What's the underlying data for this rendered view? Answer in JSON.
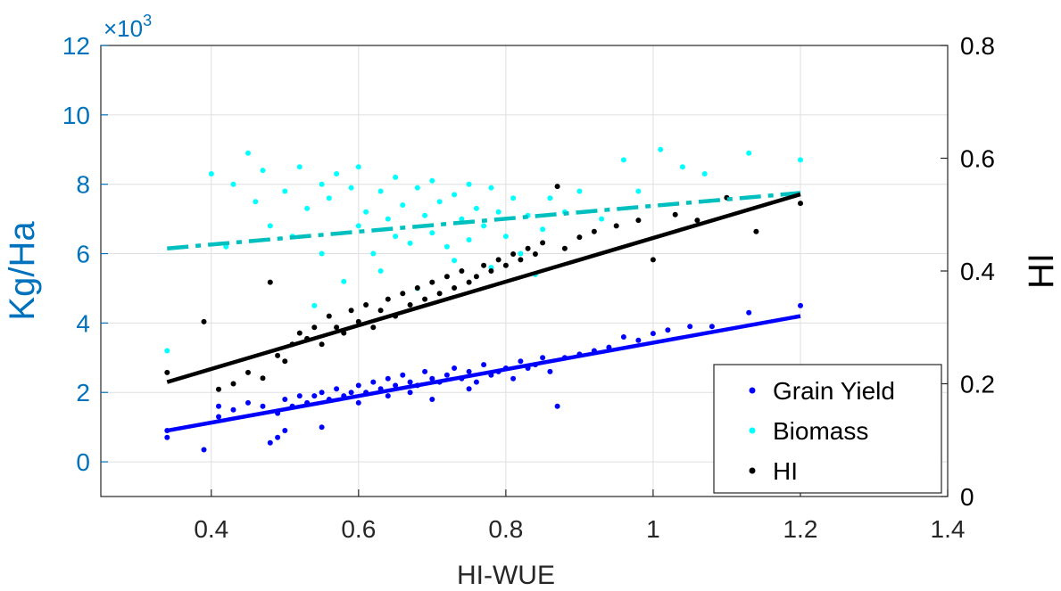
{
  "chart_data": {
    "type": "scatter",
    "title": "",
    "xlabel": "HI-WUE",
    "ylabel_left": "Kg/Ha",
    "ylabel_right": "HI",
    "y_left_multiplier_label": "×10",
    "y_left_multiplier_exponent": "3",
    "xlim": [
      0.25,
      1.4
    ],
    "ylim_left": [
      -1,
      12
    ],
    "ylim_right": [
      0,
      0.8
    ],
    "x_ticks": [
      "0.4",
      "0.6",
      "0.8",
      "1",
      "1.2",
      "1.4"
    ],
    "x_tick_values": [
      0.4,
      0.6,
      0.8,
      1.0,
      1.2,
      1.4
    ],
    "y_left_ticks": [
      "0",
      "2",
      "4",
      "6",
      "8",
      "10",
      "12"
    ],
    "y_left_tick_values": [
      0,
      2,
      4,
      6,
      8,
      10,
      12
    ],
    "y_right_ticks": [
      "0",
      "0.2",
      "0.4",
      "0.6",
      "0.8"
    ],
    "y_right_tick_values": [
      0,
      0.2,
      0.4,
      0.6,
      0.8
    ],
    "grid": true,
    "legend_position": "bottom-right",
    "series": [
      {
        "name": "Grain Yield",
        "color": "#0000ff",
        "axis": "left",
        "trend": {
          "x": [
            0.34,
            1.2
          ],
          "y": [
            0.9,
            4.2
          ],
          "style": "solid"
        },
        "points": [
          [
            0.34,
            0.7
          ],
          [
            0.34,
            0.9
          ],
          [
            0.39,
            0.35
          ],
          [
            0.41,
            1.3
          ],
          [
            0.41,
            1.6
          ],
          [
            0.43,
            1.5
          ],
          [
            0.45,
            1.7
          ],
          [
            0.47,
            1.6
          ],
          [
            0.48,
            0.55
          ],
          [
            0.49,
            0.7
          ],
          [
            0.49,
            1.4
          ],
          [
            0.5,
            0.9
          ],
          [
            0.5,
            1.8
          ],
          [
            0.51,
            1.6
          ],
          [
            0.52,
            1.9
          ],
          [
            0.53,
            1.7
          ],
          [
            0.54,
            1.9
          ],
          [
            0.55,
            2.0
          ],
          [
            0.55,
            1.0
          ],
          [
            0.56,
            1.8
          ],
          [
            0.57,
            2.1
          ],
          [
            0.58,
            1.9
          ],
          [
            0.59,
            2.0
          ],
          [
            0.6,
            2.2
          ],
          [
            0.6,
            1.7
          ],
          [
            0.61,
            2.0
          ],
          [
            0.62,
            2.3
          ],
          [
            0.63,
            2.1
          ],
          [
            0.64,
            1.9
          ],
          [
            0.64,
            2.4
          ],
          [
            0.65,
            2.2
          ],
          [
            0.66,
            2.5
          ],
          [
            0.67,
            2.0
          ],
          [
            0.67,
            2.3
          ],
          [
            0.68,
            2.2
          ],
          [
            0.69,
            2.6
          ],
          [
            0.7,
            2.4
          ],
          [
            0.7,
            1.8
          ],
          [
            0.71,
            2.3
          ],
          [
            0.72,
            2.5
          ],
          [
            0.73,
            2.7
          ],
          [
            0.74,
            2.4
          ],
          [
            0.75,
            2.6
          ],
          [
            0.75,
            2.1
          ],
          [
            0.76,
            2.3
          ],
          [
            0.77,
            2.8
          ],
          [
            0.78,
            2.5
          ],
          [
            0.79,
            2.6
          ],
          [
            0.8,
            2.7
          ],
          [
            0.81,
            2.4
          ],
          [
            0.82,
            2.9
          ],
          [
            0.83,
            2.7
          ],
          [
            0.84,
            2.8
          ],
          [
            0.85,
            3.0
          ],
          [
            0.86,
            2.6
          ],
          [
            0.87,
            1.6
          ],
          [
            0.88,
            3.0
          ],
          [
            0.9,
            3.1
          ],
          [
            0.92,
            3.2
          ],
          [
            0.94,
            3.3
          ],
          [
            0.96,
            3.6
          ],
          [
            0.98,
            3.5
          ],
          [
            1.0,
            3.7
          ],
          [
            1.02,
            3.8
          ],
          [
            1.05,
            3.9
          ],
          [
            1.08,
            3.9
          ],
          [
            1.13,
            4.3
          ],
          [
            1.2,
            4.5
          ]
        ]
      },
      {
        "name": "Biomass",
        "color": "#00ffff",
        "axis": "left",
        "trend": {
          "x": [
            0.34,
            1.2
          ],
          "y": [
            6.15,
            7.75
          ],
          "style": "dash-dot"
        },
        "points": [
          [
            0.34,
            3.2
          ],
          [
            0.4,
            8.3
          ],
          [
            0.42,
            6.2
          ],
          [
            0.43,
            8.0
          ],
          [
            0.45,
            8.9
          ],
          [
            0.46,
            7.5
          ],
          [
            0.47,
            8.4
          ],
          [
            0.48,
            6.8
          ],
          [
            0.5,
            7.8
          ],
          [
            0.51,
            6.5
          ],
          [
            0.52,
            8.5
          ],
          [
            0.53,
            7.3
          ],
          [
            0.54,
            4.5
          ],
          [
            0.55,
            8.0
          ],
          [
            0.55,
            6.0
          ],
          [
            0.56,
            7.6
          ],
          [
            0.57,
            8.3
          ],
          [
            0.58,
            5.2
          ],
          [
            0.59,
            7.9
          ],
          [
            0.6,
            6.8
          ],
          [
            0.6,
            8.5
          ],
          [
            0.61,
            7.2
          ],
          [
            0.62,
            6.0
          ],
          [
            0.63,
            7.8
          ],
          [
            0.63,
            5.5
          ],
          [
            0.64,
            7.0
          ],
          [
            0.65,
            8.2
          ],
          [
            0.65,
            6.5
          ],
          [
            0.66,
            7.4
          ],
          [
            0.67,
            6.3
          ],
          [
            0.68,
            7.9
          ],
          [
            0.68,
            5.0
          ],
          [
            0.69,
            7.1
          ],
          [
            0.7,
            6.6
          ],
          [
            0.7,
            8.1
          ],
          [
            0.71,
            7.5
          ],
          [
            0.72,
            6.2
          ],
          [
            0.73,
            7.7
          ],
          [
            0.73,
            5.8
          ],
          [
            0.74,
            7.0
          ],
          [
            0.75,
            6.4
          ],
          [
            0.75,
            8.0
          ],
          [
            0.76,
            7.3
          ],
          [
            0.77,
            6.8
          ],
          [
            0.78,
            5.6
          ],
          [
            0.78,
            7.9
          ],
          [
            0.79,
            7.2
          ],
          [
            0.8,
            6.5
          ],
          [
            0.81,
            7.6
          ],
          [
            0.82,
            6.0
          ],
          [
            0.83,
            7.1
          ],
          [
            0.84,
            5.4
          ],
          [
            0.85,
            6.7
          ],
          [
            0.86,
            7.6
          ],
          [
            0.88,
            7.2
          ],
          [
            0.9,
            7.8
          ],
          [
            0.93,
            7.0
          ],
          [
            0.96,
            8.7
          ],
          [
            0.98,
            7.8
          ],
          [
            1.01,
            9.0
          ],
          [
            1.04,
            8.5
          ],
          [
            1.07,
            8.3
          ],
          [
            1.13,
            8.9
          ],
          [
            1.2,
            8.7
          ]
        ]
      },
      {
        "name": "HI",
        "color": "#000000",
        "axis": "right",
        "trend": {
          "x": [
            0.34,
            1.2
          ],
          "y": [
            0.203,
            0.536
          ],
          "style": "solid"
        },
        "points": [
          [
            0.34,
            0.22
          ],
          [
            0.39,
            0.31
          ],
          [
            0.41,
            0.19
          ],
          [
            0.43,
            0.2
          ],
          [
            0.45,
            0.22
          ],
          [
            0.47,
            0.21
          ],
          [
            0.48,
            0.38
          ],
          [
            0.49,
            0.25
          ],
          [
            0.5,
            0.24
          ],
          [
            0.51,
            0.27
          ],
          [
            0.52,
            0.29
          ],
          [
            0.53,
            0.28
          ],
          [
            0.54,
            0.3
          ],
          [
            0.55,
            0.27
          ],
          [
            0.56,
            0.32
          ],
          [
            0.57,
            0.3
          ],
          [
            0.58,
            0.29
          ],
          [
            0.59,
            0.33
          ],
          [
            0.6,
            0.31
          ],
          [
            0.61,
            0.34
          ],
          [
            0.62,
            0.3
          ],
          [
            0.63,
            0.33
          ],
          [
            0.64,
            0.35
          ],
          [
            0.65,
            0.32
          ],
          [
            0.66,
            0.36
          ],
          [
            0.67,
            0.34
          ],
          [
            0.68,
            0.37
          ],
          [
            0.69,
            0.35
          ],
          [
            0.7,
            0.38
          ],
          [
            0.71,
            0.36
          ],
          [
            0.72,
            0.39
          ],
          [
            0.73,
            0.37
          ],
          [
            0.74,
            0.4
          ],
          [
            0.75,
            0.38
          ],
          [
            0.76,
            0.39
          ],
          [
            0.77,
            0.41
          ],
          [
            0.78,
            0.4
          ],
          [
            0.79,
            0.42
          ],
          [
            0.8,
            0.41
          ],
          [
            0.81,
            0.43
          ],
          [
            0.82,
            0.42
          ],
          [
            0.83,
            0.44
          ],
          [
            0.84,
            0.43
          ],
          [
            0.85,
            0.45
          ],
          [
            0.87,
            0.55
          ],
          [
            0.88,
            0.44
          ],
          [
            0.9,
            0.46
          ],
          [
            0.92,
            0.47
          ],
          [
            0.95,
            0.48
          ],
          [
            0.98,
            0.49
          ],
          [
            1.0,
            0.42
          ],
          [
            1.03,
            0.5
          ],
          [
            1.06,
            0.49
          ],
          [
            1.1,
            0.53
          ],
          [
            1.14,
            0.47
          ],
          [
            1.2,
            0.52
          ]
        ]
      }
    ]
  }
}
